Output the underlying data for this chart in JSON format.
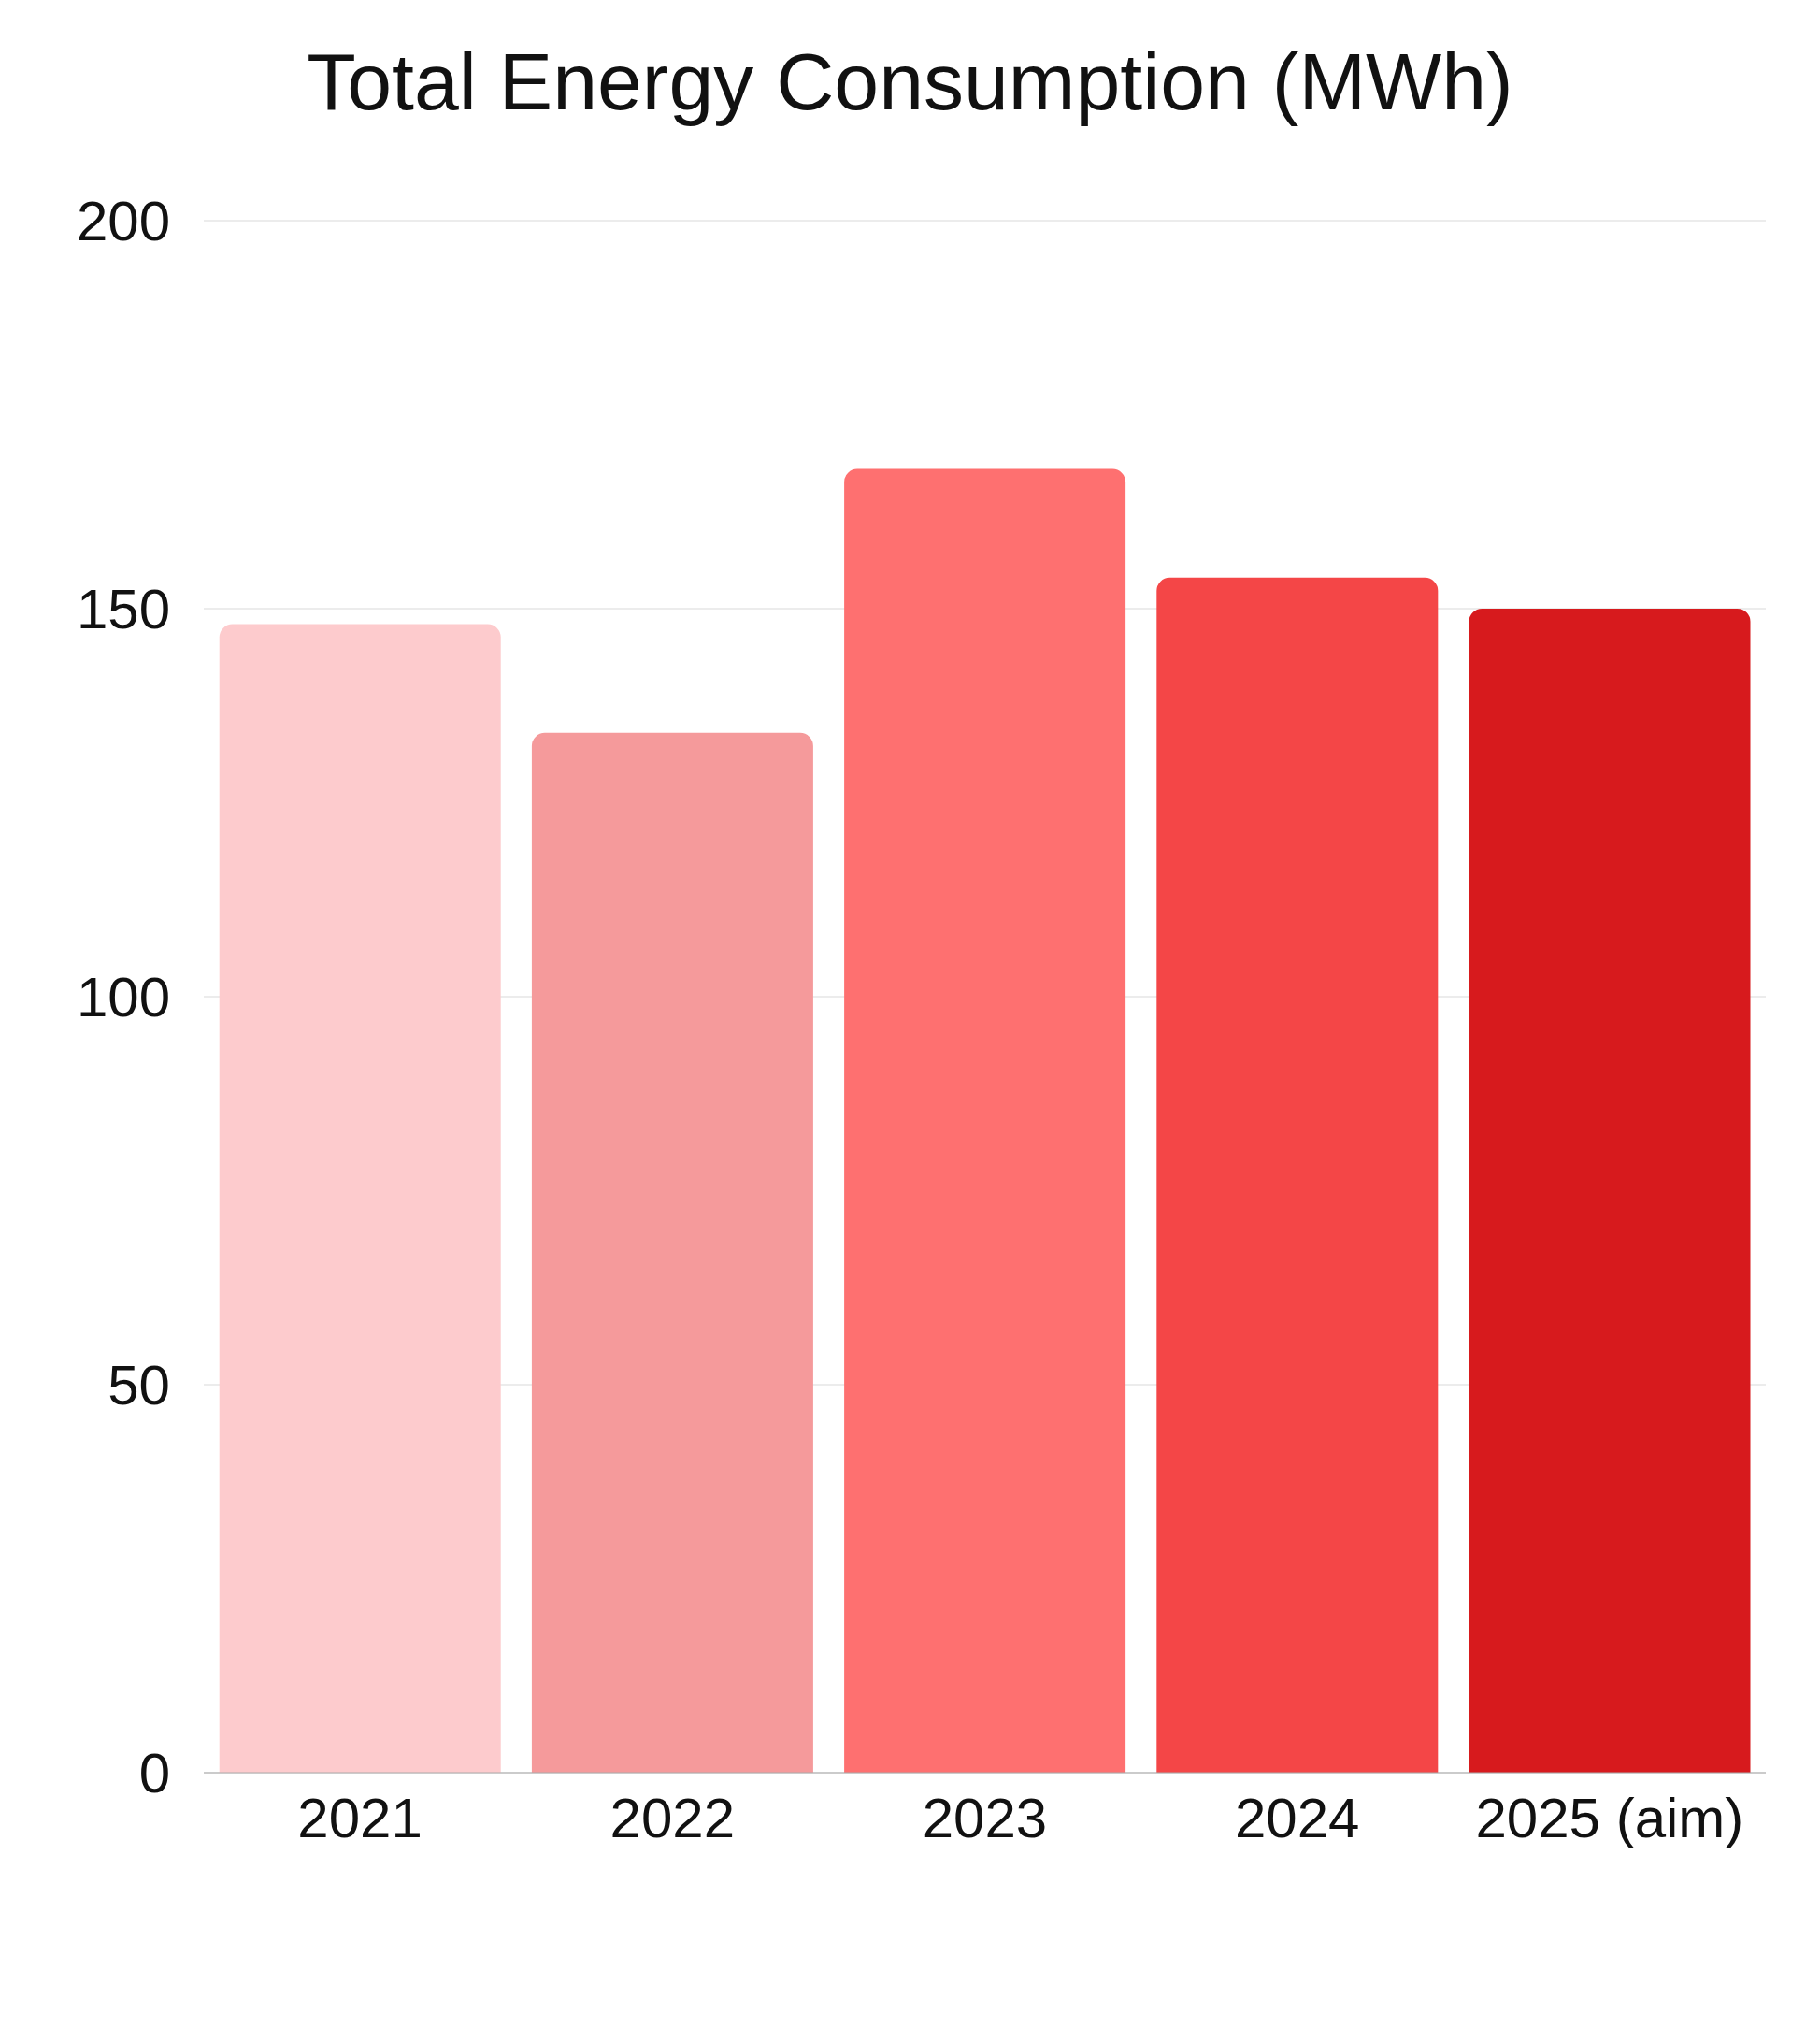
{
  "chart_data": {
    "type": "bar",
    "title": "Total Energy Consumption (MWh)",
    "categories": [
      "2021",
      "2022",
      "2023",
      "2024",
      "2025 (aim)"
    ],
    "values": [
      148,
      134,
      168,
      154,
      150
    ],
    "colors": [
      "#fdcbcd",
      "#f59a9b",
      "#fe7070",
      "#f44647",
      "#d71a1d"
    ],
    "ylim": [
      0,
      200
    ],
    "yticks": [
      0,
      50,
      100,
      150,
      200
    ],
    "grid": "y"
  }
}
